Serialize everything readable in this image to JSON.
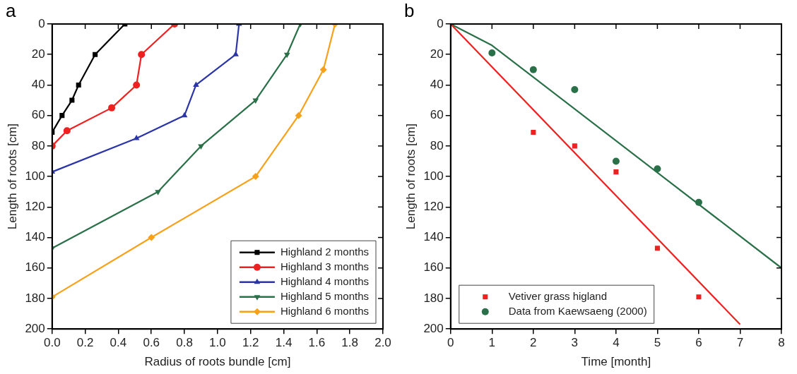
{
  "chart_data": [
    {
      "type": "line",
      "title": "a",
      "xlabel": "Radius of roots bundle [cm]",
      "ylabel": "Length of roots [cm]",
      "xlim": [
        0,
        2
      ],
      "xticks": [
        {
          "value": 0,
          "label": "0.0"
        },
        0.2,
        0.4,
        0.6,
        0.8,
        {
          "value": 1,
          "label": "1.0"
        },
        1.2,
        1.4,
        1.6,
        1.8,
        {
          "value": 2,
          "label": "2.0"
        }
      ],
      "ylim": [
        200,
        0
      ],
      "yticks": [
        0,
        20,
        40,
        60,
        80,
        100,
        120,
        140,
        160,
        180,
        200
      ],
      "legend": "bottom right",
      "grid": false,
      "line_style": "solid",
      "series": [
        {
          "name": "Highland 2 months",
          "color": "#000000",
          "marker": "square",
          "x": [
            0.44,
            0.26,
            0.16,
            0.12,
            0.06,
            0
          ],
          "values": [
            0,
            20,
            40,
            50,
            60,
            71
          ]
        },
        {
          "name": "Highland 3 months",
          "color": "#ee2020",
          "marker": "circle",
          "x": [
            0.74,
            0.54,
            0.51,
            0.36,
            0.09,
            0
          ],
          "values": [
            0,
            20,
            40,
            55,
            70,
            80
          ]
        },
        {
          "name": "Highland 4 months",
          "color": "#2b35a8",
          "marker": "triangle",
          "x": [
            1.13,
            1.11,
            0.87,
            0.8,
            0.51,
            0
          ],
          "values": [
            0,
            20,
            40,
            60,
            75,
            97
          ]
        },
        {
          "name": "Highland 5 months",
          "color": "#2a7048",
          "marker": "triangle-down",
          "x": [
            1.5,
            1.42,
            1.23,
            0.9,
            0.64,
            0
          ],
          "values": [
            0,
            20,
            50,
            80,
            110,
            147
          ]
        },
        {
          "name": "Highland 6 months",
          "color": "#f7a11a",
          "marker": "diamond",
          "x": [
            1.71,
            1.64,
            1.49,
            1.23,
            0.6,
            0
          ],
          "values": [
            0,
            30,
            60,
            100,
            140,
            179
          ]
        }
      ]
    },
    {
      "type": "scatter",
      "title": "b",
      "xlabel": "Time [month]",
      "ylabel": "Length of roots [cm]",
      "xlim": [
        0,
        8
      ],
      "xticks": [
        0,
        1,
        2,
        3,
        4,
        5,
        6,
        7,
        8
      ],
      "ylim": [
        200,
        0
      ],
      "yticks": [
        0,
        20,
        40,
        60,
        80,
        100,
        120,
        140,
        160,
        180,
        200
      ],
      "legend": "bottom left",
      "grid": false,
      "series": [
        {
          "name": "Vetiver grass higland",
          "color": "#ee2020",
          "marker": "square",
          "x": [
            2,
            3,
            4,
            5,
            6
          ],
          "values": [
            71,
            80,
            97,
            147,
            179
          ]
        },
        {
          "name": "Data from Kaewsaeng (2000)",
          "color": "#2a7048",
          "marker": "circle",
          "x": [
            1,
            2,
            3,
            4,
            5,
            6
          ],
          "values": [
            19,
            30,
            43,
            90,
            95,
            117
          ]
        },
        {
          "type": "line",
          "color": "#ee2020",
          "marker": "none",
          "line_style": "solid",
          "x": [
            0,
            7
          ],
          "values": [
            0,
            197
          ]
        },
        {
          "type": "line",
          "color": "#2a7048",
          "marker": "none",
          "line_style": "solid",
          "x": [
            0,
            1,
            8
          ],
          "values": [
            0,
            14,
            160
          ]
        }
      ]
    }
  ]
}
